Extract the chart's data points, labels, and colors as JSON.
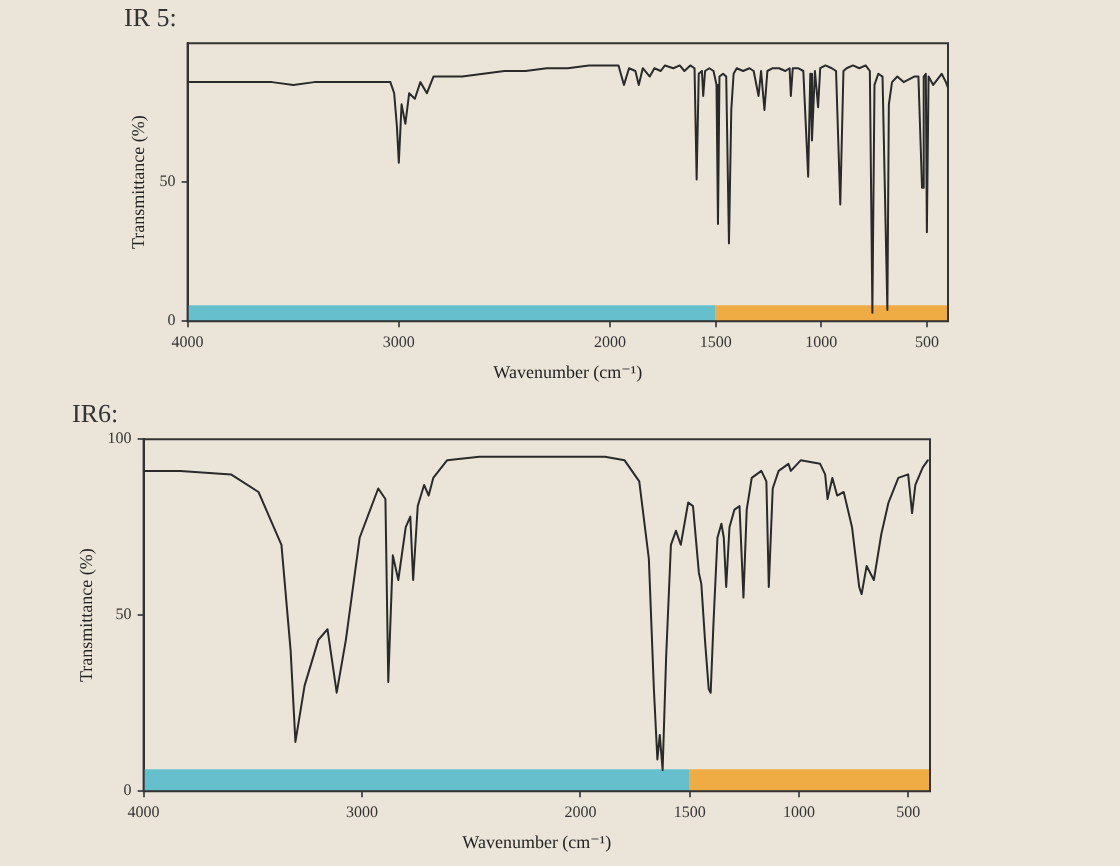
{
  "chart_data": [
    {
      "type": "line",
      "title": "IR 5:",
      "xlabel": "Wavenumber (cm⁻¹)",
      "ylabel": "Transmittance (%)",
      "color": "#2a2a2a",
      "marker": "none",
      "xlim": [
        4000,
        400
      ],
      "xticks": [
        4000,
        3000,
        2000,
        1500,
        1000,
        500
      ],
      "ylim": [
        0,
        100
      ],
      "yticks": [
        0,
        50
      ],
      "bands": [
        {
          "axis": "x",
          "from": 4000,
          "to": 1500,
          "color": "#4fb9c9"
        },
        {
          "axis": "x",
          "from": 1500,
          "to": 400,
          "color": "#f0a22a"
        }
      ],
      "x": [
        3990,
        3900,
        3800,
        3700,
        3600,
        3500,
        3400,
        3300,
        3200,
        3100,
        3040,
        3022,
        3009,
        3000,
        2987,
        2969,
        2951,
        2924,
        2898,
        2867,
        2836,
        2800,
        2700,
        2600,
        2500,
        2400,
        2300,
        2200,
        2100,
        2000,
        1960,
        1934,
        1910,
        1880,
        1864,
        1845,
        1812,
        1790,
        1760,
        1740,
        1700,
        1670,
        1648,
        1620,
        1600,
        1590,
        1580,
        1565,
        1559,
        1550,
        1530,
        1510,
        1496,
        1489,
        1482,
        1465,
        1450,
        1437,
        1426,
        1415,
        1400,
        1370,
        1340,
        1320,
        1297,
        1285,
        1269,
        1255,
        1230,
        1200,
        1170,
        1150,
        1144,
        1135,
        1110,
        1085,
        1062,
        1052,
        1044,
        1030,
        1015,
        1005,
        980,
        950,
        930,
        910,
        895,
        880,
        850,
        820,
        790,
        770,
        758,
        748,
        730,
        710,
        687,
        680,
        665,
        640,
        610,
        585,
        560,
        540,
        523,
        515,
        505,
        500,
        492,
        470,
        450,
        430,
        410,
        400
      ],
      "values": [
        86,
        86,
        86,
        86,
        86,
        85,
        86,
        86,
        86,
        86,
        86,
        82,
        70,
        57,
        78,
        71,
        82,
        80,
        86,
        82,
        88,
        88,
        88,
        89,
        90,
        90,
        91,
        91,
        92,
        92,
        92,
        85,
        91,
        90,
        85,
        91,
        88,
        91,
        90,
        92,
        91,
        92,
        90,
        92,
        91,
        51,
        89,
        90,
        81,
        90,
        91,
        90,
        85,
        35,
        88,
        89,
        88,
        28,
        76,
        89,
        91,
        90,
        91,
        90,
        81,
        90,
        76,
        90,
        91,
        91,
        90,
        91,
        81,
        91,
        91,
        90,
        52,
        89,
        65,
        90,
        77,
        91,
        92,
        91,
        90,
        42,
        90,
        91,
        92,
        91,
        92,
        90,
        3,
        85,
        89,
        88,
        4,
        78,
        86,
        88,
        86,
        87,
        88,
        88,
        48,
        88,
        89,
        32,
        88,
        85,
        87,
        89,
        86,
        84
      ]
    },
    {
      "type": "line",
      "title": "IR6:",
      "xlabel": "Wavenumber (cm⁻¹)",
      "ylabel": "Transmittance (%)",
      "color": "#2a2a2a",
      "marker": "none",
      "xlim": [
        4000,
        400
      ],
      "xticks": [
        4000,
        3000,
        2000,
        1500,
        1000,
        500
      ],
      "ylim": [
        0,
        100
      ],
      "yticks": [
        0,
        50,
        100
      ],
      "bands": [
        {
          "axis": "x",
          "from": 4000,
          "to": 1500,
          "color": "#4fb9c9"
        },
        {
          "axis": "x",
          "from": 1500,
          "to": 400,
          "color": "#f0a22a"
        }
      ],
      "x": [
        3995,
        3832,
        3600,
        3474,
        3369,
        3327,
        3305,
        3263,
        3200,
        3158,
        3116,
        3074,
        3011,
        2926,
        2893,
        2880,
        2859,
        2834,
        2800,
        2779,
        2766,
        2745,
        2716,
        2695,
        2674,
        2611,
        2463,
        2211,
        2000,
        1888,
        1798,
        1731,
        1687,
        1664,
        1648,
        1637,
        1624,
        1608,
        1586,
        1563,
        1541,
        1507,
        1485,
        1458,
        1447,
        1429,
        1413,
        1404,
        1391,
        1373,
        1355,
        1344,
        1333,
        1318,
        1295,
        1272,
        1254,
        1239,
        1216,
        1172,
        1149,
        1138,
        1120,
        1093,
        1048,
        1037,
        992,
        903,
        880,
        869,
        847,
        825,
        795,
        757,
        724,
        713,
        690,
        657,
        623,
        590,
        545,
        500,
        482,
        467,
        433,
        410
      ],
      "values": [
        91,
        91,
        90,
        85,
        70,
        40,
        14,
        30,
        43,
        46,
        28,
        43,
        72,
        86,
        83,
        31,
        67,
        60,
        75,
        78,
        60,
        81,
        87,
        84,
        89,
        94,
        95,
        95,
        95,
        95,
        94,
        88,
        66,
        29,
        9,
        16,
        6,
        38,
        70,
        74,
        70,
        82,
        81,
        62,
        59,
        42,
        29,
        28,
        48,
        72,
        76,
        72,
        58,
        75,
        80,
        81,
        55,
        80,
        89,
        91,
        88,
        58,
        86,
        91,
        93,
        91,
        94,
        93,
        90,
        83,
        89,
        84,
        85,
        75,
        58,
        56,
        64,
        60,
        73,
        82,
        89,
        90,
        79,
        87,
        92,
        94
      ]
    }
  ]
}
